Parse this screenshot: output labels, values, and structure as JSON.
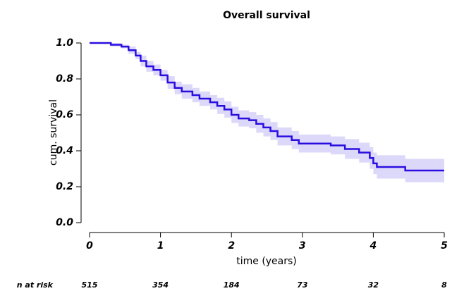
{
  "chart_data": {
    "type": "step",
    "title": "Overall survival",
    "xlabel": "time (years)",
    "ylabel": "cum. survival",
    "x": [
      0,
      0.1,
      0.3,
      0.45,
      0.55,
      0.65,
      0.72,
      0.8,
      0.9,
      1.0,
      1.1,
      1.2,
      1.3,
      1.45,
      1.55,
      1.7,
      1.8,
      1.9,
      2.0,
      2.1,
      2.25,
      2.35,
      2.45,
      2.55,
      2.65,
      2.85,
      2.95,
      3.3,
      3.4,
      3.6,
      3.8,
      3.95,
      4.0,
      4.05,
      4.45,
      5.0
    ],
    "series": [
      {
        "color": "#2a0ee0",
        "band_color": "#dcd8fa",
        "values": [
          1.0,
          1.0,
          0.99,
          0.98,
          0.96,
          0.93,
          0.9,
          0.87,
          0.85,
          0.82,
          0.78,
          0.75,
          0.73,
          0.71,
          0.69,
          0.67,
          0.65,
          0.63,
          0.6,
          0.58,
          0.57,
          0.55,
          0.53,
          0.51,
          0.48,
          0.46,
          0.44,
          0.44,
          0.43,
          0.41,
          0.39,
          0.36,
          0.33,
          0.31,
          0.29,
          0.29
        ],
        "lower": [
          1.0,
          1.0,
          0.98,
          0.97,
          0.94,
          0.91,
          0.87,
          0.84,
          0.82,
          0.79,
          0.745,
          0.715,
          0.69,
          0.67,
          0.65,
          0.63,
          0.605,
          0.585,
          0.555,
          0.535,
          0.525,
          0.5,
          0.48,
          0.46,
          0.43,
          0.41,
          0.39,
          0.39,
          0.38,
          0.355,
          0.335,
          0.3,
          0.27,
          0.245,
          0.225,
          0.225
        ],
        "upper": [
          1.0,
          1.0,
          1.0,
          0.99,
          0.98,
          0.95,
          0.93,
          0.9,
          0.88,
          0.85,
          0.815,
          0.785,
          0.77,
          0.75,
          0.73,
          0.71,
          0.695,
          0.675,
          0.645,
          0.625,
          0.615,
          0.6,
          0.58,
          0.56,
          0.53,
          0.51,
          0.49,
          0.49,
          0.48,
          0.465,
          0.445,
          0.42,
          0.39,
          0.375,
          0.355,
          0.355
        ]
      }
    ],
    "xlim": [
      0,
      5
    ],
    "xticks": [
      0,
      1,
      2,
      3,
      4,
      5
    ],
    "ylim": [
      0,
      1
    ],
    "yticks": [
      {
        "value": 0,
        "label": "0.0"
      },
      0.2,
      0.4,
      0.6,
      0.8,
      {
        "value": 1,
        "label": "1.0"
      }
    ],
    "risk_table": {
      "label": "n at risk",
      "values": [
        515,
        354,
        184,
        73,
        32,
        8
      ]
    }
  }
}
